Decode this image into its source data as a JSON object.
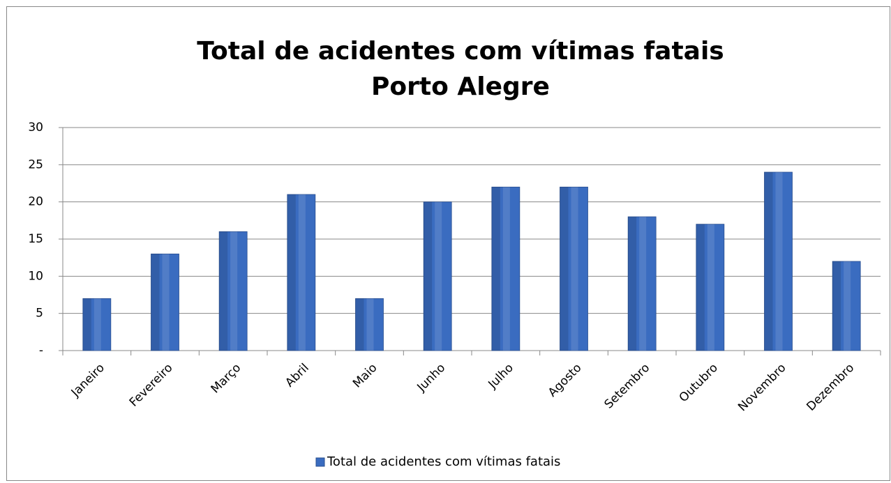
{
  "chart_data": {
    "type": "bar",
    "title": [
      "Total de acidentes com vítimas fatais",
      "Porto Alegre"
    ],
    "categories": [
      "Janeiro",
      "Fevereiro",
      "Março",
      "Abril",
      "Maio",
      "Junho",
      "Julho",
      "Agosto",
      "Setembro",
      "Outubro",
      "Novembro",
      "Dezembro"
    ],
    "series": [
      {
        "name": "Total de acidentes com vítimas fatais",
        "color": "#3a6cc0",
        "values": [
          7,
          13,
          16,
          21,
          7,
          20,
          22,
          22,
          18,
          17,
          24,
          12
        ]
      }
    ],
    "ylim": [
      0,
      30
    ],
    "yticks": [
      {
        "value": 0,
        "label": "-"
      },
      5,
      10,
      15,
      20,
      25,
      30
    ],
    "grid": true,
    "legend": "bottom"
  }
}
